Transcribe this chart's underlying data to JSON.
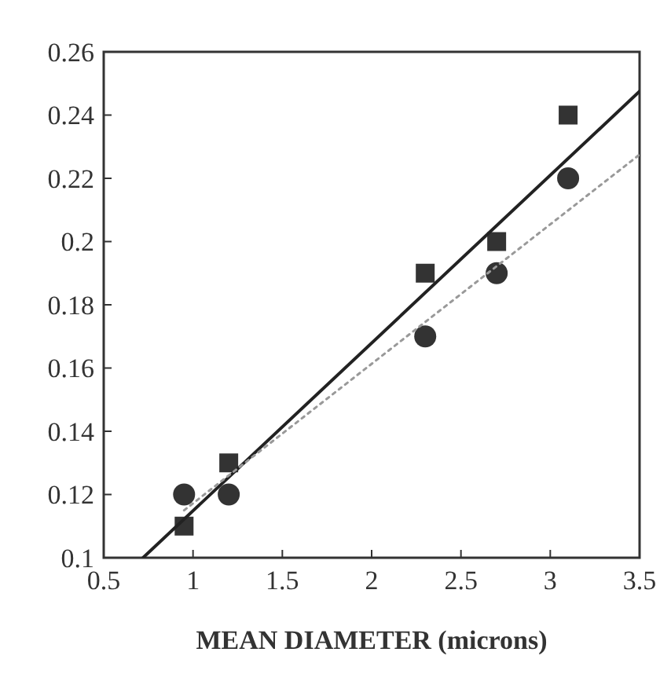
{
  "chart_data": {
    "type": "scatter",
    "xlabel": "MEAN DIAMETER (microns)",
    "xlim": [
      0.5,
      3.5
    ],
    "xticks": [
      0.5,
      1,
      1.5,
      2,
      2.5,
      3,
      3.5
    ],
    "ylim": [
      0.1,
      0.26
    ],
    "yticks": [
      0.1,
      0.12,
      0.14,
      0.16,
      0.18,
      0.2,
      0.22,
      0.24,
      0.26
    ],
    "grid": false,
    "series": [
      {
        "marker": "square",
        "color": "#333333",
        "x": [
          0.95,
          1.2,
          2.3,
          2.7,
          3.1
        ],
        "values": [
          0.11,
          0.13,
          0.19,
          0.2,
          0.24
        ]
      },
      {
        "marker": "circle",
        "color": "#333333",
        "x": [
          0.95,
          1.2,
          2.3,
          2.7,
          3.1
        ],
        "values": [
          0.12,
          0.12,
          0.17,
          0.19,
          0.22
        ]
      },
      {
        "type": "line",
        "marker": "none",
        "line_style": "solid",
        "color": "#222222",
        "x": [
          0.72,
          3.5
        ],
        "values": [
          0.1,
          0.2475
        ]
      },
      {
        "type": "line",
        "marker": "none",
        "line_style": "dotted",
        "color": "#999999",
        "x": [
          0.95,
          3.5
        ],
        "values": [
          0.115,
          0.2275
        ]
      }
    ]
  }
}
